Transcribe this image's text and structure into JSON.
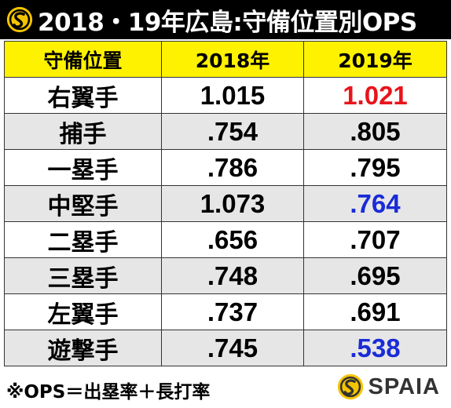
{
  "title": "2018・19年広島:守備位置別OPS",
  "table": {
    "headers": [
      "守備位置",
      "2018年",
      "2019年"
    ],
    "rows": [
      {
        "position": "右翼手",
        "y2018": "1.015",
        "y2019": "1.021",
        "y2019_color": "#e8141b"
      },
      {
        "position": "捕手",
        "y2018": ".754",
        "y2019": ".805",
        "y2019_color": "#000000"
      },
      {
        "position": "一塁手",
        "y2018": ".786",
        "y2019": ".795",
        "y2019_color": "#000000"
      },
      {
        "position": "中堅手",
        "y2018": "1.073",
        "y2019": ".764",
        "y2019_color": "#1a2bd6"
      },
      {
        "position": "二塁手",
        "y2018": ".656",
        "y2019": ".707",
        "y2019_color": "#000000"
      },
      {
        "position": "三塁手",
        "y2018": ".748",
        "y2019": ".695",
        "y2019_color": "#000000"
      },
      {
        "position": "左翼手",
        "y2018": ".737",
        "y2019": ".691",
        "y2019_color": "#000000"
      },
      {
        "position": "遊撃手",
        "y2018": ".745",
        "y2019": ".538",
        "y2019_color": "#1a2bd6"
      }
    ]
  },
  "footnote": "※OPS＝出塁率＋長打率",
  "brand": {
    "name": "SPAIA",
    "logo_icon": "spaia-logo-icon"
  },
  "colors": {
    "header_bg": "#fff200",
    "title_bg": "#000000",
    "stripe_bg": "#e6e6e6",
    "logo_yellow": "#f5c400"
  }
}
